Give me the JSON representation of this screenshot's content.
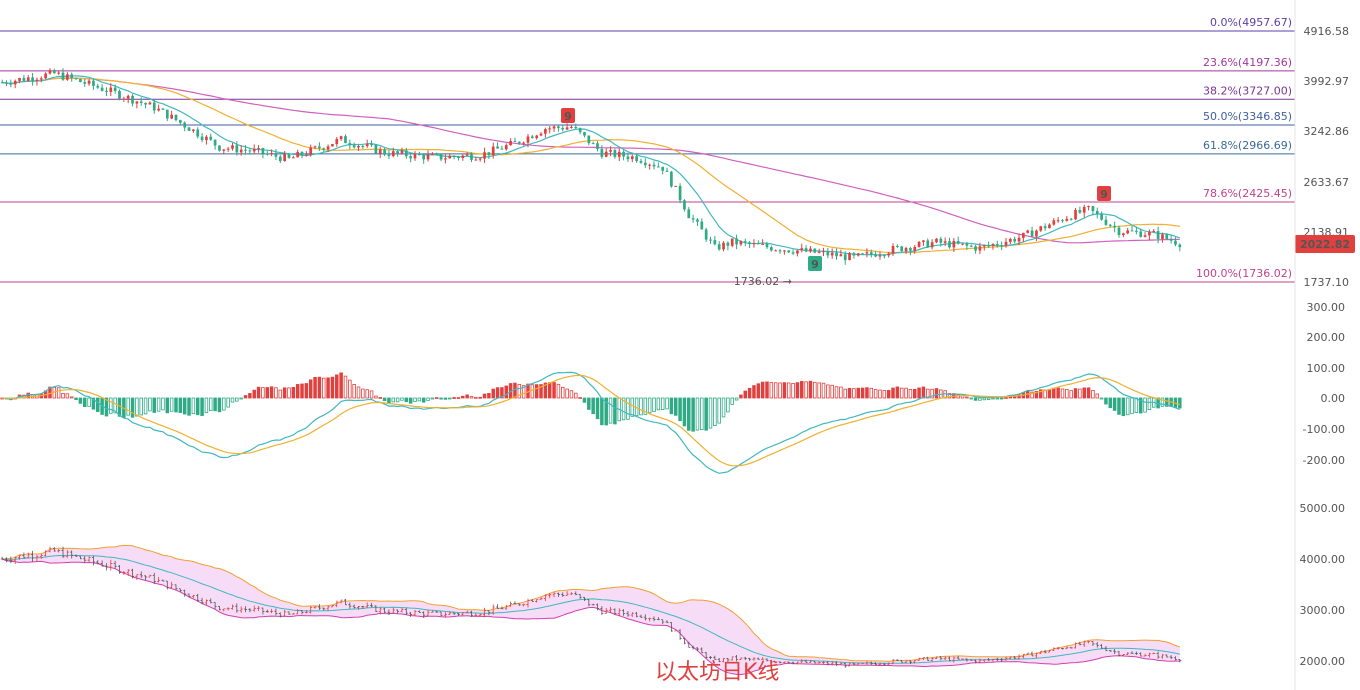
{
  "chart_data": [
    {
      "type": "candlestick",
      "panel": "price",
      "caption": "以太坊日K线",
      "y_axis_ticks": [
        "4916.58",
        "3992.97",
        "3242.86",
        "2633.67",
        "2138.91",
        "1737.10"
      ],
      "ylim": [
        1650,
        5100
      ],
      "last_price": "2022.82",
      "fib_levels": [
        {
          "label": "0.0%(4957.67)",
          "value": 4957.67,
          "color": "#5b3fa8"
        },
        {
          "label": "23.6%(4197.36)",
          "value": 4197.36,
          "color": "#a0389a"
        },
        {
          "label": "38.2%(3727.00)",
          "value": 3727.0,
          "color": "#7a3590"
        },
        {
          "label": "50.0%(3346.85)",
          "value": 3346.85,
          "color": "#3f5fa0"
        },
        {
          "label": "61.8%(2966.69)",
          "value": 2966.69,
          "color": "#3b6a9a"
        },
        {
          "label": "78.6%(2425.45)",
          "value": 2425.45,
          "color": "#c4418d"
        },
        {
          "label": "100.0%(1736.02)",
          "value": 1736.02,
          "color": "#c4418d"
        }
      ],
      "low_annotation": "1736.02",
      "td_markers": [
        {
          "text": "9",
          "color": "#e0413f"
        },
        {
          "text": "9",
          "color": "#e0413f"
        },
        {
          "text": "9",
          "color": "#2eaa84"
        }
      ],
      "anchors": [
        [
          0,
          4000
        ],
        [
          12,
          4150
        ],
        [
          25,
          3850
        ],
        [
          35,
          3600
        ],
        [
          50,
          3050
        ],
        [
          58,
          3000
        ],
        [
          66,
          2900
        ],
        [
          78,
          3150
        ],
        [
          88,
          2980
        ],
        [
          100,
          2920
        ],
        [
          110,
          2950
        ],
        [
          118,
          3100
        ],
        [
          125,
          3300
        ],
        [
          131,
          3320
        ],
        [
          138,
          2980
        ],
        [
          146,
          2920
        ],
        [
          152,
          2800
        ],
        [
          158,
          2300
        ],
        [
          164,
          2000
        ],
        [
          168,
          2050
        ],
        [
          178,
          2000
        ],
        [
          188,
          1960
        ],
        [
          196,
          1920
        ],
        [
          205,
          1990
        ],
        [
          215,
          2050
        ],
        [
          225,
          2000
        ],
        [
          235,
          2100
        ],
        [
          245,
          2280
        ],
        [
          250,
          2350
        ],
        [
          257,
          2150
        ],
        [
          265,
          2120
        ],
        [
          272,
          2030
        ]
      ],
      "candle_count": 272
    },
    {
      "type": "macd",
      "panel": "macd",
      "y_axis_ticks": [
        "300.00",
        "200.00",
        "100.00",
        "0.00",
        "-100.00",
        "-200.00"
      ],
      "ylim": [
        -300,
        330
      ]
    },
    {
      "type": "bollinger",
      "panel": "bollinger",
      "y_axis_ticks": [
        "5000.00",
        "4000.00",
        "3000.00",
        "2000.00"
      ],
      "ylim": [
        1500,
        5200
      ],
      "colors": {
        "upper": "#f0a030",
        "middle": "#40b8c0",
        "lower": "#d040b0",
        "fill": "#f6dcf6"
      }
    }
  ],
  "colors": {
    "up": "#e0413f",
    "down": "#2eaa84",
    "ma_fast": "#40b8c0",
    "ma_mid": "#f0b030",
    "ma_slow": "#d060c0"
  }
}
